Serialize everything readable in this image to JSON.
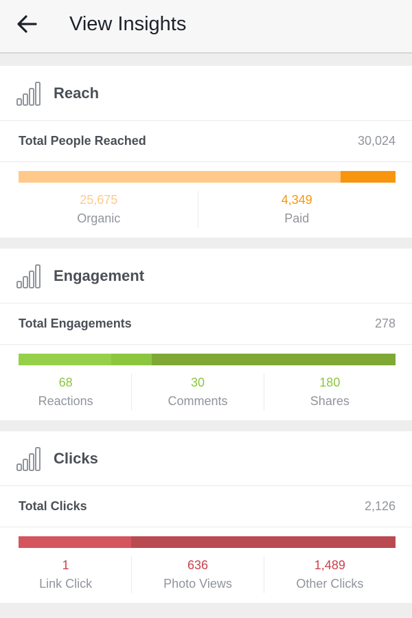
{
  "header": {
    "title": "View Insights",
    "back_icon": "arrow-left-icon"
  },
  "sections": [
    {
      "id": "reach",
      "title": "Reach",
      "icon": "bar-chart-icon",
      "total_label": "Total People Reached",
      "total_value": "30,024",
      "stats": [
        {
          "value": "25,675",
          "label": "Organic",
          "color": "#ffc98a",
          "bar_fraction": 0.855
        },
        {
          "value": "4,349",
          "label": "Paid",
          "color": "#f7960e",
          "bar_fraction": 0.145
        }
      ]
    },
    {
      "id": "engagement",
      "title": "Engagement",
      "icon": "bar-chart-icon",
      "total_label": "Total Engagements",
      "total_value": "278",
      "stats": [
        {
          "value": "68",
          "label": "Reactions",
          "color": "#96d04a",
          "bar_fraction": 0.245
        },
        {
          "value": "30",
          "label": "Comments",
          "color": "#8cc63f",
          "bar_fraction": 0.108
        },
        {
          "value": "180",
          "label": "Shares",
          "color": "#7fa835",
          "bar_fraction": 0.647
        }
      ]
    },
    {
      "id": "clicks",
      "title": "Clicks",
      "icon": "bar-chart-icon",
      "total_label": "Total Clicks",
      "total_value": "2,126",
      "stats": [
        {
          "value": "1",
          "label": "Link Click",
          "color": "#d5555e",
          "bar_fraction": 0.0005
        },
        {
          "value": "636",
          "label": "Photo Views",
          "color": "#d5555e",
          "bar_fraction": 0.299
        },
        {
          "value": "1,489",
          "label": "Other Clicks",
          "color": "#b94a52",
          "bar_fraction": 0.7005
        }
      ]
    }
  ],
  "colors": {
    "reach_value_organic": "#ffc98a",
    "reach_value_paid": "#f7960e",
    "engagement_value": "#8cc63f",
    "clicks_value": "#c9424d"
  }
}
